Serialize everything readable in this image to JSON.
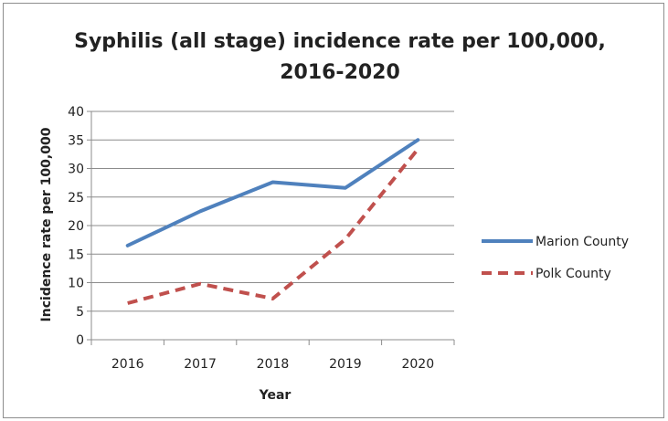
{
  "chart_data": {
    "type": "line",
    "title_lines": [
      "Syphilis (all stage) incidence rate per 100,000,",
      "2016-2020"
    ],
    "xlabel": "Year",
    "ylabel": "Incidence rate per 100,000",
    "categories": [
      "2016",
      "2017",
      "2018",
      "2019",
      "2020"
    ],
    "ylim": [
      0,
      40
    ],
    "yticks": [
      0,
      5,
      10,
      15,
      20,
      25,
      30,
      35,
      40
    ],
    "grid": true,
    "legend_position": "right",
    "series": [
      {
        "name": "Marion County",
        "values": [
          16.5,
          22.5,
          27.6,
          26.6,
          35.0
        ],
        "color": "#4f81bd",
        "style": "solid"
      },
      {
        "name": "Polk County",
        "values": [
          6.4,
          9.8,
          7.2,
          17.6,
          33.4
        ],
        "color": "#c0504d",
        "style": "dashed"
      }
    ]
  }
}
